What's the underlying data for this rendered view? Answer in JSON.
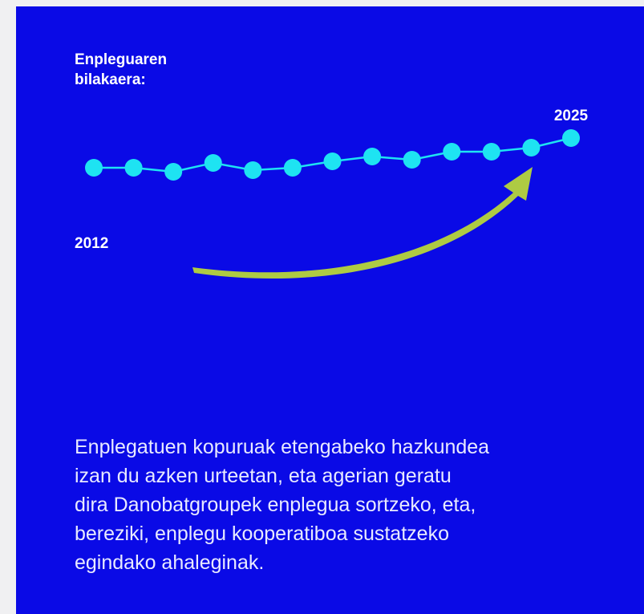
{
  "chart_data": {
    "type": "line",
    "title": "Enpleguaren bilakaera:",
    "categories": [
      "2012",
      null,
      null,
      null,
      null,
      null,
      null,
      null,
      null,
      null,
      null,
      null,
      "2025"
    ],
    "series": [
      {
        "color": "#1ee3f2",
        "values": [
          21,
          21,
          16,
          27,
          18,
          21,
          29,
          35,
          31,
          41,
          41,
          46,
          58
        ]
      }
    ],
    "ylim": [
      0,
      80
    ],
    "description": [
      "Enplegatuen kopuruak etengabeko hazkundea",
      "izan du azken urteetan, eta agerian geratu",
      "dira Danobatgroupek enplegua sortzeko, eta,",
      "bereziki, enplegu kooperatiboa sustatzeko",
      "egindako ahaleginak."
    ]
  }
}
